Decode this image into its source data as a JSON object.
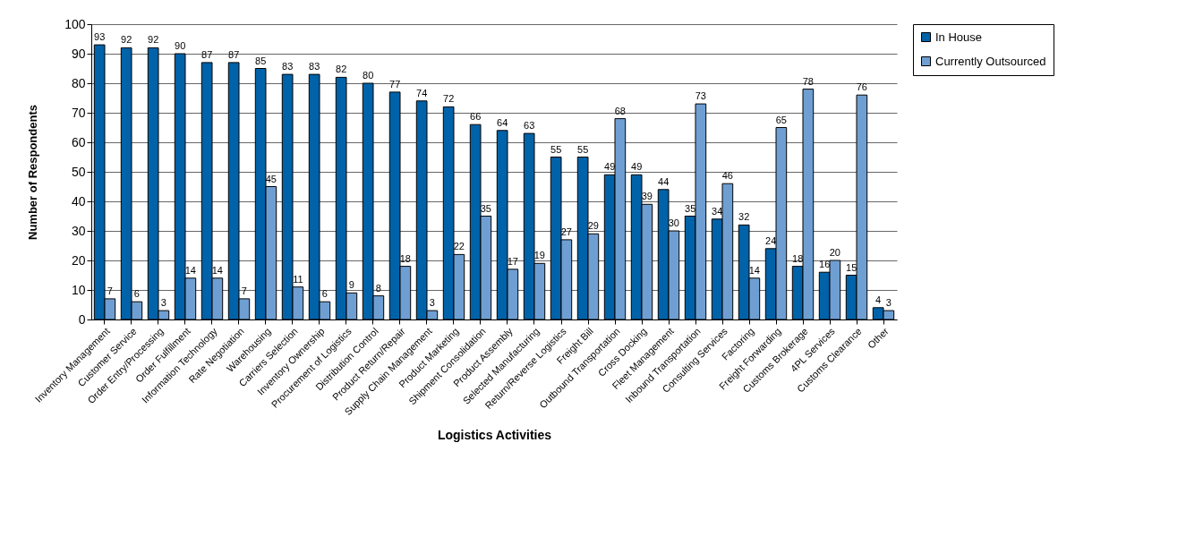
{
  "chart_data": {
    "type": "bar",
    "xlabel": "Logistics Activities",
    "ylabel": "Number of Respondents",
    "categories": [
      "Inventory Management",
      "Customer Service",
      "Order Entry/Processing",
      "Order Fulfillment",
      "Information Technology",
      "Rate Negotiation",
      "Warehousing",
      "Carriers Selection",
      "Inventory Ownership",
      "Procurement of Logistics",
      "Distribution Control",
      "Product Return/Repair",
      "Supply Chain Management",
      "Product Marketing",
      "Shipment Consolidation",
      "Product Assembly",
      "Selected Manufacturing",
      "Return/Reverse Logistics",
      "Freight Bill",
      "Outbound Transportation",
      "Cross Docking",
      "Fleet Management",
      "Inbound Transportation",
      "Consulting Services",
      "Factoring",
      "Freight Forwarding",
      "Customs Brokerage",
      "4PL Services",
      "Customs Clearance",
      "Other"
    ],
    "series": [
      {
        "name": "In House",
        "color": "#0062a8",
        "values": [
          93,
          92,
          92,
          90,
          87,
          87,
          85,
          83,
          83,
          82,
          80,
          77,
          74,
          72,
          66,
          64,
          63,
          55,
          55,
          49,
          49,
          44,
          35,
          34,
          32,
          24,
          18,
          16,
          15,
          4
        ]
      },
      {
        "name": "Currently Outsourced",
        "color": "#6f9fd2",
        "values": [
          7,
          6,
          3,
          14,
          14,
          7,
          45,
          11,
          6,
          9,
          8,
          18,
          3,
          22,
          35,
          17,
          19,
          27,
          29,
          68,
          39,
          30,
          73,
          46,
          14,
          65,
          78,
          20,
          76,
          3
        ]
      }
    ],
    "ylim": [
      0,
      100
    ],
    "yticks": [
      0,
      10,
      20,
      30,
      40,
      50,
      60,
      70,
      80,
      90,
      100
    ],
    "grid": "y",
    "legend": "right",
    "data_labels": true
  }
}
